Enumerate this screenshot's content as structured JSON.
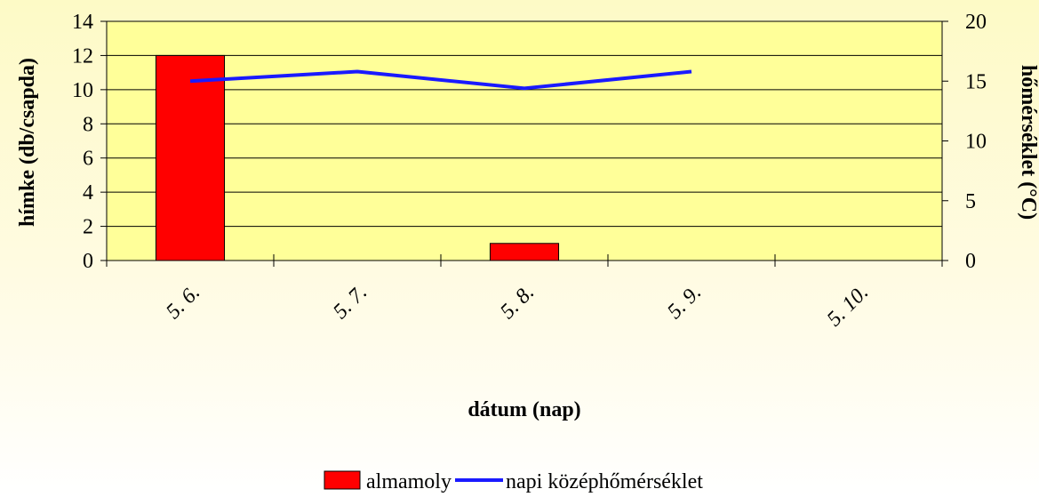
{
  "chart_data": {
    "type": "bar",
    "categories": [
      "5. 6.",
      "5. 7.",
      "5. 8.",
      "5. 9.",
      "5. 10."
    ],
    "series": [
      {
        "name": "almamoly",
        "type": "bar",
        "axis": "left",
        "color": "#ff0000",
        "values": [
          12,
          0,
          1,
          0,
          0
        ]
      },
      {
        "name": "napi középhőmérséklet",
        "type": "line",
        "axis": "right",
        "color": "#1a1aff",
        "values": [
          15,
          15.8,
          14.4,
          15.8,
          null
        ]
      }
    ],
    "xlabel": "dátum (nap)",
    "ylabel": "hímke (db/csapda)",
    "y2label": "hőmérséklet (°C)",
    "ylim": [
      0,
      14
    ],
    "yticks": [
      0,
      2,
      4,
      6,
      8,
      10,
      12,
      14
    ],
    "y2lim": [
      0,
      20
    ],
    "y2ticks": [
      0,
      5,
      10,
      15,
      20
    ],
    "grid": true,
    "plot_background": "#ffff99",
    "legend_position": "bottom"
  }
}
